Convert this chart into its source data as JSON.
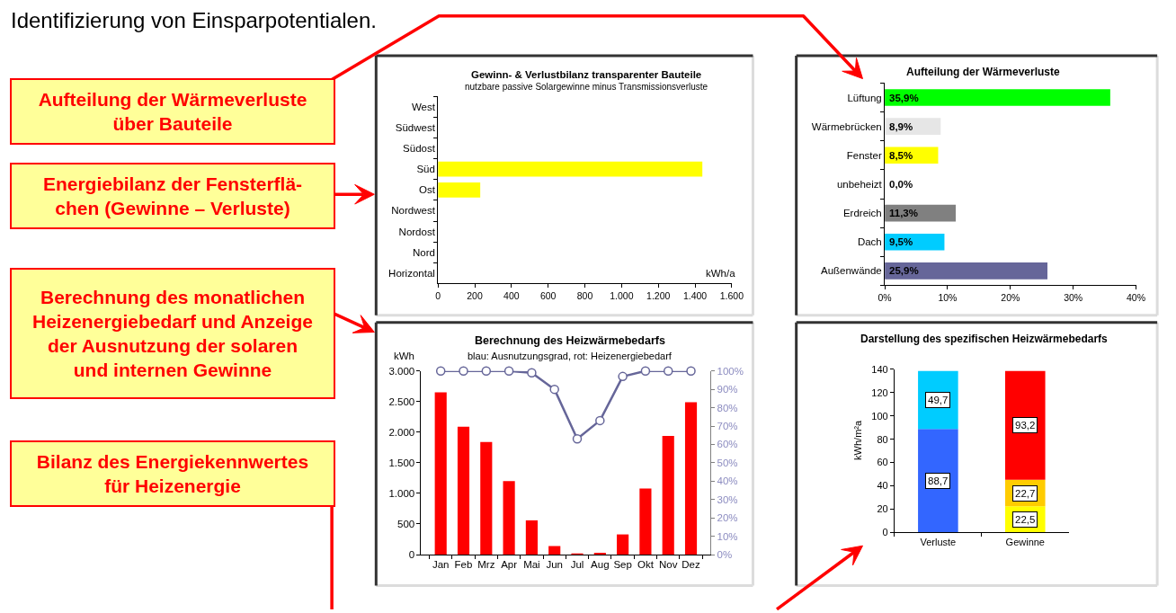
{
  "chart_data": [
    {
      "type": "other",
      "title": "Identifizierung von Einsparpotentialen.",
      "annotations": [
        "Aufteilung der Wärmeverluste\nüber Bauteile",
        "Energiebilanz der Fensterflä-\nchen (Gewinne – Verluste)",
        "Berechnung des monatlichen\nHeizenergiebedarf und Anzeige\nder Ausnutzung der solaren\nund internen Gewinne",
        "Bilanz des Energiekennwertes\nfür Heizenergie"
      ]
    },
    {
      "type": "bar",
      "orientation": "horizontal",
      "title": "Gewinn- & Verlustbilanz transparenter Bauteile",
      "subtitle": "nutzbare passive Solargewinne minus Transmissionsverluste",
      "xlabel": "kWh/a",
      "categories": [
        "West",
        "Südwest",
        "Südost",
        "Süd",
        "Ost",
        "Nordwest",
        "Nordost",
        "Nord",
        "Horizontal"
      ],
      "values": [
        0,
        0,
        0,
        1440,
        230,
        0,
        0,
        0,
        0
      ],
      "color": "#ffff00",
      "xlim": [
        0,
        1600
      ],
      "xticks": [
        0,
        200,
        400,
        600,
        800,
        {
          "value": 1000,
          "label": "1.000"
        },
        {
          "value": 1200,
          "label": "1.200"
        },
        {
          "value": 1400,
          "label": "1.400"
        },
        {
          "value": 1600,
          "label": "1.600"
        }
      ]
    },
    {
      "type": "bar",
      "orientation": "horizontal",
      "title": "Aufteilung der Wärmeverluste",
      "categories": [
        "Lüftung",
        "Wärmebrücken",
        "Fenster",
        "unbeheizt",
        "Erdreich",
        "Dach",
        "Außenwände"
      ],
      "values": [
        35.9,
        8.9,
        8.5,
        0.0,
        11.3,
        9.5,
        25.9
      ],
      "colors": [
        "#00ff00",
        "#e6e6e6",
        "#ffff00",
        null,
        "#808080",
        "#00ccff",
        "#666699"
      ],
      "value_labels": [
        "35,9%",
        "8,9%",
        "8,5%",
        "0,0%",
        "11,3%",
        "9,5%",
        "25,9%"
      ],
      "xlim": [
        0,
        40
      ],
      "xticks": [
        {
          "value": 0,
          "label": "0%"
        },
        {
          "value": 10,
          "label": "10%"
        },
        {
          "value": 20,
          "label": "20%"
        },
        {
          "value": 30,
          "label": "30%"
        },
        {
          "value": 40,
          "label": "40%"
        }
      ]
    },
    {
      "type": "bar",
      "title": "Berechnung des Heizwärmebedarfs",
      "subtitle": "blau: Ausnutzungsgrad, rot: Heizenergiebedarf",
      "ylabel": "kWh",
      "categories": [
        "Jan",
        "Feb",
        "Mrz",
        "Apr",
        "Mai",
        "Jun",
        "Jul",
        "Aug",
        "Sep",
        "Okt",
        "Nov",
        "Dez"
      ],
      "series": [
        {
          "type": "bar",
          "color": "#ff0000",
          "values": [
            2650,
            2090,
            1840,
            1200,
            560,
            140,
            10,
            30,
            330,
            1080,
            1940,
            2490
          ]
        },
        {
          "type": "line",
          "axis": "y2",
          "color": "#666699",
          "marker": "circle",
          "values": [
            100,
            100,
            100,
            100,
            99,
            90,
            63,
            73,
            97,
            100,
            100,
            100
          ]
        }
      ],
      "ylim": [
        0,
        3000
      ],
      "yticks": [
        0,
        500,
        {
          "value": 1000,
          "label": "1.000"
        },
        {
          "value": 1500,
          "label": "1.500"
        },
        {
          "value": 2000,
          "label": "2.000"
        },
        {
          "value": 2500,
          "label": "2.500"
        },
        {
          "value": 3000,
          "label": "3.000"
        }
      ],
      "y2lim": [
        0,
        100
      ],
      "y2ticks": [
        {
          "value": 0,
          "label": "0%"
        },
        {
          "value": 10,
          "label": "10%"
        },
        {
          "value": 20,
          "label": "20%"
        },
        {
          "value": 30,
          "label": "30%"
        },
        {
          "value": 40,
          "label": "40%"
        },
        {
          "value": 50,
          "label": "50%"
        },
        {
          "value": 60,
          "label": "60%"
        },
        {
          "value": 70,
          "label": "70%"
        },
        {
          "value": 80,
          "label": "80%"
        },
        {
          "value": 90,
          "label": "90%"
        },
        {
          "value": 100,
          "label": "100%"
        }
      ]
    },
    {
      "type": "bar",
      "stacked": true,
      "title": "Darstellung des spezifischen Heizwärmebedarfs",
      "ylabel": "kWh/m²a",
      "categories": [
        "Verluste",
        "Gewinne"
      ],
      "series": [
        {
          "values": [
            88.7,
            22.5
          ],
          "colors": [
            "#3366ff",
            "#ffff00"
          ],
          "value_labels": [
            "88,7",
            "22,5"
          ]
        },
        {
          "values": [
            49.7,
            22.7
          ],
          "colors": [
            "#00ccff",
            "#ffcc00"
          ],
          "value_labels": [
            "49,7",
            "22,7"
          ]
        },
        {
          "values": [
            null,
            93.2
          ],
          "color": "#ff0000",
          "value_labels": [
            null,
            "93,2"
          ]
        }
      ],
      "ylim": [
        0,
        140
      ],
      "yticks": [
        0,
        20,
        40,
        60,
        80,
        100,
        120,
        140
      ]
    }
  ]
}
